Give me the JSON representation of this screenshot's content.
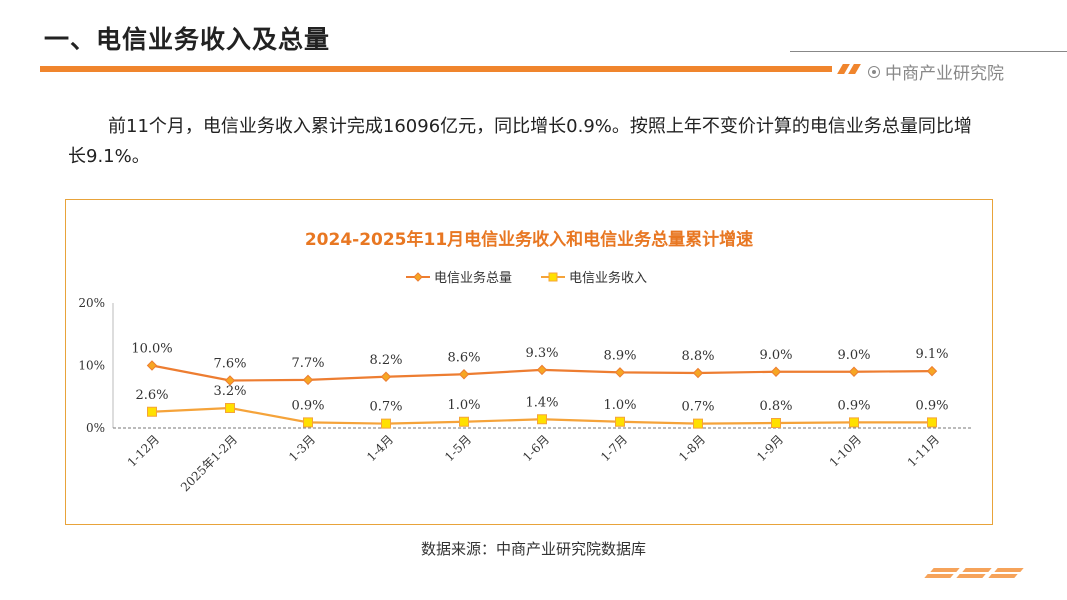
{
  "page": {
    "title": "一、电信业务收入及总量",
    "brand": "中商产业研究院",
    "intro": "前11个月，电信业务收入累计完成16096亿元，同比增长0.9%。按照上年不变价计算的电信业务总量同比增长9.1%。",
    "source": "数据来源：中商产业研究院数据库"
  },
  "colors": {
    "accent": "#f0852d",
    "title_text": "#e87722",
    "series_total_line": "#ed7d31",
    "series_total_marker": "#f6a623",
    "series_income_line": "#f5a33a",
    "series_income_marker": "#ffe000",
    "frame": "#e8a33a"
  },
  "chart_data": {
    "type": "line",
    "title": "2024-2025年11月电信业务收入和电信业务总量累计增速",
    "categories": [
      "1-12月",
      "2025年1-2月",
      "1-3月",
      "1-4月",
      "1-5月",
      "1-6月",
      "1-7月",
      "1-8月",
      "1-9月",
      "1-10月",
      "1-11月"
    ],
    "series": [
      {
        "name": "电信业务总量",
        "marker": "diamond",
        "values": [
          10.0,
          7.6,
          7.7,
          8.2,
          8.6,
          9.3,
          8.9,
          8.8,
          9.0,
          9.0,
          9.1
        ],
        "labels": [
          "10.0%",
          "7.6%",
          "7.7%",
          "8.2%",
          "8.6%",
          "9.3%",
          "8.9%",
          "8.8%",
          "9.0%",
          "9.0%",
          "9.1%"
        ]
      },
      {
        "name": "电信业务收入",
        "marker": "square",
        "values": [
          2.6,
          3.2,
          0.9,
          0.7,
          1.0,
          1.4,
          1.0,
          0.7,
          0.8,
          0.9,
          0.9
        ],
        "labels": [
          "2.6%",
          "3.2%",
          "0.9%",
          "0.7%",
          "1.0%",
          "1.4%",
          "1.0%",
          "0.7%",
          "0.8%",
          "0.9%",
          "0.9%"
        ]
      }
    ],
    "yticks": [
      0,
      10,
      20
    ],
    "ytick_labels": [
      "0%",
      "10%",
      "20%"
    ],
    "ylim": [
      0,
      20
    ],
    "legend_position": "top-center",
    "grid": false
  }
}
